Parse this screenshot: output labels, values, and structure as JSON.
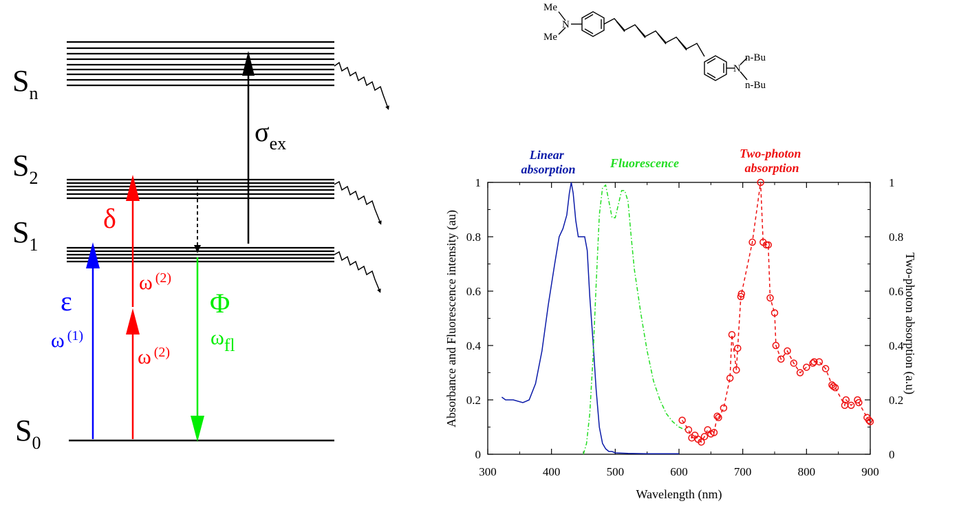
{
  "diagram": {
    "levels": {
      "sn": {
        "letter": "S",
        "sub": "n"
      },
      "s2": {
        "letter": "S",
        "sub": "2"
      },
      "s1": {
        "letter": "S",
        "sub": "1"
      },
      "s0": {
        "letter": "S",
        "sub": "0"
      }
    },
    "labels": {
      "sigma": "σ",
      "sigma_sub": "ex",
      "delta": "δ",
      "epsilon": "ε",
      "phi": "Φ",
      "omega1": "ω",
      "omega1_sup": "(1)",
      "omega2a": "ω",
      "omega2a_sup": "(2)",
      "omega2b": "ω",
      "omega2b_sup": "(2)",
      "omega_fl": "ω",
      "omega_fl_sub": "fl"
    },
    "colors": {
      "black": "#000000",
      "blue": "#0000ff",
      "red": "#ff0000",
      "green": "#00ee00"
    }
  },
  "molecule": {
    "me_top": "Me",
    "me_bottom": "Me",
    "n_left": "N",
    "n_right": "N",
    "nbu_top": "n-Bu",
    "nbu_bottom": "n-Bu"
  },
  "chart_data": {
    "type": "line",
    "xlabel": "Wavelength (nm)",
    "ylabel_left": "Absorbance and Fluorescence intensity (au)",
    "ylabel_right": "Two-photon absorption (a.u)",
    "xlim": [
      300,
      900
    ],
    "ylim_left": [
      0,
      1
    ],
    "ylim_right": [
      0,
      1
    ],
    "x_ticks": [
      "300",
      "400",
      "500",
      "600",
      "700",
      "800",
      "900"
    ],
    "y_ticks_left": [
      "0",
      "0.2",
      "0.4",
      "0.6",
      "0.8",
      "1"
    ],
    "y_ticks_right": [
      "0",
      "0.2",
      "0.4",
      "0.6",
      "0.8",
      "1"
    ],
    "series": [
      {
        "name": "Linear absorption",
        "name_line1": "Linear",
        "name_line2": "absorption",
        "color": "#0a1aa8",
        "style": "solid",
        "x": [
          322,
          328,
          340,
          355,
          365,
          375,
          385,
          395,
          405,
          412,
          418,
          424,
          428,
          431,
          434,
          438,
          442,
          447,
          452,
          456,
          460,
          465,
          470,
          475,
          480,
          485,
          490,
          495,
          500,
          520,
          550,
          600
        ],
        "y": [
          0.21,
          0.2,
          0.2,
          0.19,
          0.2,
          0.26,
          0.38,
          0.55,
          0.7,
          0.8,
          0.83,
          0.88,
          0.96,
          1.0,
          0.96,
          0.86,
          0.8,
          0.8,
          0.8,
          0.75,
          0.58,
          0.42,
          0.24,
          0.1,
          0.04,
          0.02,
          0.01,
          0.01,
          0.005,
          0.003,
          0.002,
          0.002
        ]
      },
      {
        "name": "Fluorescence",
        "name_line1": "Fluorescence",
        "color": "#22dd22",
        "style": "dash-dot",
        "x": [
          450,
          455,
          460,
          465,
          470,
          475,
          480,
          485,
          490,
          495,
          500,
          505,
          510,
          515,
          520,
          525,
          530,
          535,
          540,
          545,
          550,
          560,
          570,
          580,
          590,
          600,
          610
        ],
        "y": [
          0.0,
          0.04,
          0.15,
          0.35,
          0.62,
          0.88,
          0.98,
          0.99,
          0.93,
          0.87,
          0.87,
          0.92,
          0.97,
          0.97,
          0.93,
          0.8,
          0.68,
          0.6,
          0.52,
          0.45,
          0.38,
          0.27,
          0.2,
          0.15,
          0.12,
          0.1,
          0.09
        ]
      },
      {
        "name": "Two-photon absorption",
        "name_line1": "Two-photon",
        "name_line2": "absorption",
        "color": "#ee1111",
        "style": "dashed-markers",
        "x": [
          605,
          615,
          620,
          625,
          630,
          635,
          640,
          645,
          650,
          655,
          660,
          662,
          670,
          680,
          683,
          690,
          692,
          697,
          698,
          715,
          728,
          732,
          737,
          740,
          743,
          750,
          752,
          760,
          770,
          780,
          790,
          800,
          810,
          812,
          820,
          830,
          840,
          842,
          845,
          860,
          862,
          870,
          880,
          882,
          895,
          898,
          900
        ],
        "y": [
          0.125,
          0.09,
          0.06,
          0.07,
          0.055,
          0.045,
          0.065,
          0.09,
          0.075,
          0.08,
          0.14,
          0.135,
          0.17,
          0.28,
          0.44,
          0.31,
          0.39,
          0.58,
          0.59,
          0.78,
          1.0,
          0.78,
          0.77,
          0.77,
          0.575,
          0.52,
          0.4,
          0.35,
          0.38,
          0.335,
          0.3,
          0.32,
          0.335,
          0.34,
          0.34,
          0.315,
          0.255,
          0.25,
          0.245,
          0.18,
          0.2,
          0.18,
          0.2,
          0.19,
          0.135,
          0.125,
          0.12
        ]
      }
    ]
  }
}
